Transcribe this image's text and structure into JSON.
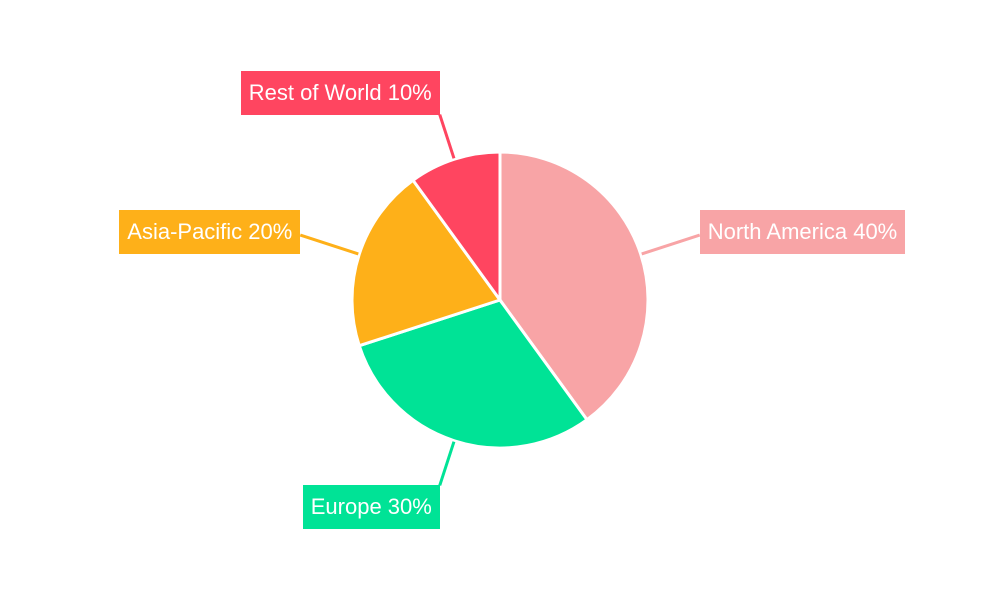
{
  "chart_data": {
    "type": "pie",
    "title": "",
    "start_angle": "top",
    "direction": "clockwise",
    "slices": [
      {
        "name": "North America",
        "value": 40,
        "label": "North America 40%",
        "color": "#f8a4a6"
      },
      {
        "name": "Europe",
        "value": 30,
        "label": "Europe 30%",
        "color": "#00e396"
      },
      {
        "name": "Asia-Pacific",
        "value": 20,
        "label": "Asia-Pacific 20%",
        "color": "#feb019"
      },
      {
        "name": "Rest of World",
        "value": 10,
        "label": "Rest of World 10%",
        "color": "#ff4560"
      }
    ]
  }
}
